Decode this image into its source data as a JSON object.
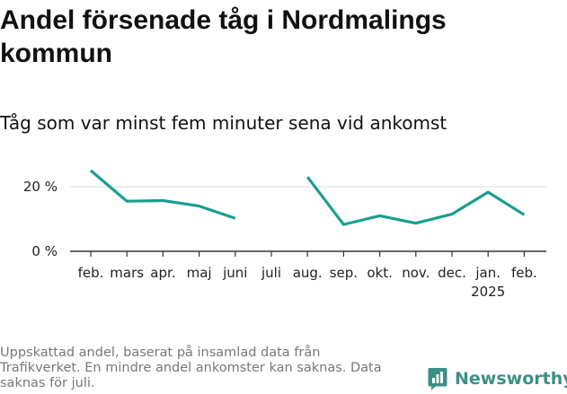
{
  "title": "Andel försenade tåg i Nordmalings kommun",
  "subtitle": "Tåg som var minst fem minuter sena vid ankomst",
  "footnote": "Uppskattad andel, baserat på insamlad data från Trafikverket. En mindre andel ankomster kan saknas. Data saknas för juli.",
  "brand": {
    "name": "Newsworthy",
    "icon": "bar-chart-logo-icon"
  },
  "colors": {
    "line": "#1a9e8f",
    "axis": "#333333",
    "grid": "#dddddd",
    "brand": "#3d8f86"
  },
  "chart_data": {
    "type": "line",
    "categories": [
      "feb.",
      "mars",
      "apr.",
      "maj",
      "juni",
      "juli",
      "aug.",
      "sep.",
      "okt.",
      "nov.",
      "dec.",
      "jan.",
      "feb."
    ],
    "year_label": "2025",
    "series": [
      {
        "values": [
          25,
          15.5,
          15.7,
          14,
          10.2,
          null,
          23,
          8.3,
          11,
          8.7,
          11.5,
          18.3,
          11.3
        ]
      }
    ],
    "yticks": [
      0,
      20
    ],
    "ytick_labels": [
      "0 %",
      "20 %"
    ],
    "ylim": [
      0,
      27
    ],
    "grid": true
  }
}
